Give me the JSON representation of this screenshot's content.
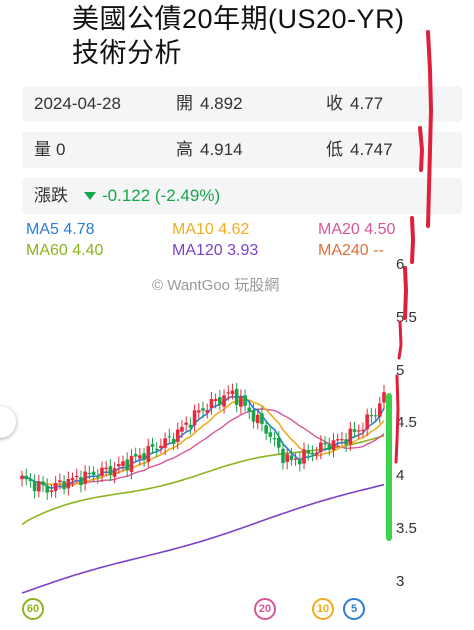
{
  "title": {
    "line1": "美國公債20年期(US20-YR)",
    "line2": "技術分析"
  },
  "quote": {
    "date": "2024-04-28",
    "open_label": "開",
    "open": "4.892",
    "close_label": "收",
    "close": "4.77",
    "volume_label": "量",
    "volume": "0",
    "high_label": "高",
    "high": "4.914",
    "low_label": "低",
    "low": "4.747",
    "change_label": "漲跌",
    "change": "-0.122 (-2.49%)"
  },
  "ma": {
    "ma5": "MA5 4.78",
    "ma10": "MA10 4.62",
    "ma20": "MA20 4.50",
    "ma60": "MA60 4.40",
    "ma120": "MA120 3.93",
    "ma240": "MA240 --"
  },
  "watermark": "© WantGoo 玩股網",
  "axis": {
    "y_ticks": [
      "6",
      "5.5",
      "5",
      "4.5",
      "4",
      "3.5",
      "3"
    ]
  },
  "badges": {
    "b60": "60",
    "b20": "20",
    "b10": "10",
    "b5": "5"
  },
  "colors": {
    "up": "#e8283c",
    "down": "#16a64a",
    "ma5": "#2a7fd4",
    "ma10": "#f0ac1e",
    "ma20": "#d6569a",
    "ma60": "#8ab51e",
    "ma120": "#7d42c8",
    "ma240": "#e0703a"
  }
}
